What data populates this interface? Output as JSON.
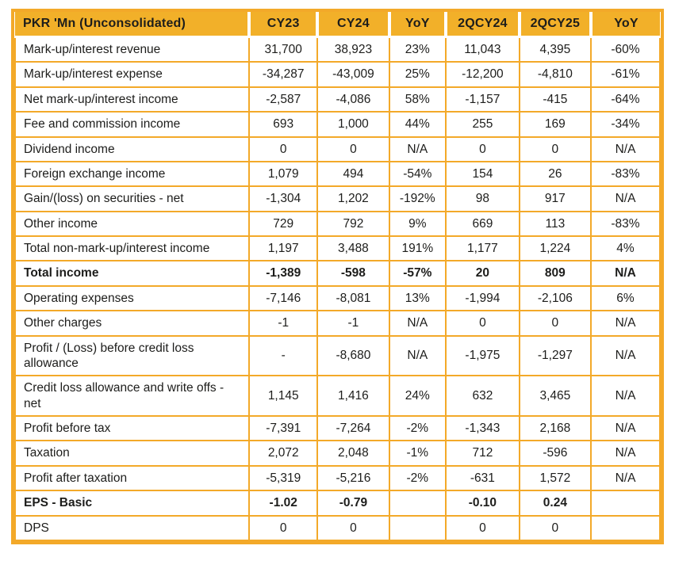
{
  "title": "PKR 'Mn (Unconsolidated)",
  "colors": {
    "header_bg": "#F2B029",
    "border": "#F3A929",
    "text": "#1D1D1B",
    "page_bg": "#FFFFFF"
  },
  "table": {
    "columns": [
      "PKR 'Mn (Unconsolidated)",
      "CY23",
      "CY24",
      "YoY",
      "2QCY24",
      "2QCY25",
      "YoY"
    ],
    "rows": [
      {
        "label": "Mark-up/interest revenue",
        "bold": false,
        "values": [
          "31,700",
          "38,923",
          "23%",
          "11,043",
          "4,395",
          "-60%"
        ]
      },
      {
        "label": "Mark-up/interest expense",
        "bold": false,
        "values": [
          "-34,287",
          "-43,009",
          "25%",
          "-12,200",
          "-4,810",
          "-61%"
        ]
      },
      {
        "label": "Net mark-up/interest income",
        "bold": false,
        "values": [
          "-2,587",
          "-4,086",
          "58%",
          "-1,157",
          "-415",
          "-64%"
        ]
      },
      {
        "label": "Fee and commission income",
        "bold": false,
        "values": [
          "693",
          "1,000",
          "44%",
          "255",
          "169",
          "-34%"
        ]
      },
      {
        "label": "Dividend income",
        "bold": false,
        "values": [
          "0",
          "0",
          "N/A",
          "0",
          "0",
          "N/A"
        ]
      },
      {
        "label": "Foreign exchange income",
        "bold": false,
        "values": [
          "1,079",
          "494",
          "-54%",
          "154",
          "26",
          "-83%"
        ]
      },
      {
        "label": "Gain/(loss) on securities - net",
        "bold": false,
        "values": [
          "-1,304",
          "1,202",
          "-192%",
          "98",
          "917",
          "N/A"
        ]
      },
      {
        "label": "Other income",
        "bold": false,
        "values": [
          "729",
          "792",
          "9%",
          "669",
          "113",
          "-83%"
        ]
      },
      {
        "label": "Total non-mark-up/interest income",
        "bold": false,
        "values": [
          "1,197",
          "3,488",
          "191%",
          "1,177",
          "1,224",
          "4%"
        ]
      },
      {
        "label": "Total income",
        "bold": true,
        "values": [
          "-1,389",
          "-598",
          "-57%",
          "20",
          "809",
          "N/A"
        ]
      },
      {
        "label": "Operating expenses",
        "bold": false,
        "values": [
          "-7,146",
          "-8,081",
          "13%",
          "-1,994",
          "-2,106",
          "6%"
        ]
      },
      {
        "label": "Other charges",
        "bold": false,
        "values": [
          "-1",
          "-1",
          "N/A",
          "0",
          "0",
          "N/A"
        ]
      },
      {
        "label": "Profit / (Loss) before credit loss allowance",
        "bold": false,
        "values": [
          "-",
          "-8,680",
          "N/A",
          "-1,975",
          "-1,297",
          "N/A"
        ]
      },
      {
        "label": "Credit loss allowance and write offs - net",
        "bold": false,
        "values": [
          "1,145",
          "1,416",
          "24%",
          "632",
          "3,465",
          "N/A"
        ]
      },
      {
        "label": "Profit before tax",
        "bold": false,
        "values": [
          "-7,391",
          "-7,264",
          "-2%",
          "-1,343",
          "2,168",
          "N/A"
        ]
      },
      {
        "label": "Taxation",
        "bold": false,
        "values": [
          "2,072",
          "2,048",
          "-1%",
          "712",
          "-596",
          "N/A"
        ]
      },
      {
        "label": "Profit after taxation",
        "bold": false,
        "values": [
          "-5,319",
          "-5,216",
          "-2%",
          "-631",
          "1,572",
          "N/A"
        ]
      },
      {
        "label": "EPS - Basic",
        "bold": true,
        "values": [
          "-1.02",
          "-0.79",
          "",
          "-0.10",
          "0.24",
          ""
        ]
      },
      {
        "label": "DPS",
        "bold": false,
        "values": [
          "0",
          "0",
          "",
          "0",
          "0",
          ""
        ]
      }
    ]
  }
}
